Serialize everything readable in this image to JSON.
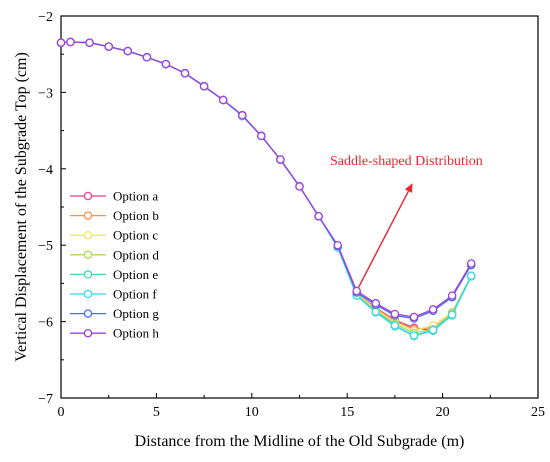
{
  "chart_data": {
    "type": "line",
    "title": "",
    "xlabel": "Distance from the Midline of the Old Subgrade (m)",
    "ylabel": "Vertical Displacement of the Subgrade Top (cm)",
    "xlim": [
      0,
      25
    ],
    "ylim": [
      -7,
      -2
    ],
    "x_ticks": [
      "0",
      "5",
      "10",
      "15",
      "20",
      "25"
    ],
    "y_ticks": [
      "−2",
      "−3",
      "−4",
      "−5",
      "−6",
      "−7"
    ],
    "grid": false,
    "legend_position": "left-middle",
    "annotation": {
      "text": "Saddle-shaped Distribution",
      "color": "#e8262c",
      "arrow_from": [
        15.6,
        -5.55
      ],
      "arrow_to": [
        18.4,
        -4.2
      ]
    },
    "x": [
      0,
      0.5,
      1.5,
      2.5,
      3.5,
      4.5,
      5.5,
      6.5,
      7.5,
      8.5,
      9.5,
      10.5,
      11.5,
      12.5,
      13.5,
      14.5,
      15.5,
      16.5,
      17.5,
      18.5,
      19.5,
      20.5,
      21.5
    ],
    "series": [
      {
        "name": "Option a",
        "color": "#e8408c",
        "values": [
          -2.35,
          -2.34,
          -2.35,
          -2.4,
          -2.46,
          -2.54,
          -2.63,
          -2.75,
          -2.92,
          -3.1,
          -3.3,
          -3.57,
          -3.88,
          -4.23,
          -4.62,
          -5.02,
          -5.63,
          -5.82,
          -5.98,
          -6.08,
          -6.12,
          -5.88,
          -5.4
        ]
      },
      {
        "name": "Option b",
        "color": "#f0914a",
        "values": [
          -2.35,
          -2.34,
          -2.35,
          -2.4,
          -2.46,
          -2.54,
          -2.63,
          -2.75,
          -2.92,
          -3.1,
          -3.3,
          -3.57,
          -3.88,
          -4.23,
          -4.62,
          -5.02,
          -5.63,
          -5.83,
          -5.99,
          -6.1,
          -6.08,
          -5.9,
          -5.4
        ]
      },
      {
        "name": "Option c",
        "color": "#f2e470",
        "values": [
          -2.35,
          -2.34,
          -2.35,
          -2.4,
          -2.46,
          -2.54,
          -2.63,
          -2.75,
          -2.92,
          -3.1,
          -3.3,
          -3.57,
          -3.88,
          -4.23,
          -4.62,
          -5.02,
          -5.63,
          -5.84,
          -6.01,
          -6.12,
          -6.05,
          -5.88,
          -5.4
        ]
      },
      {
        "name": "Option d",
        "color": "#a8d860",
        "values": [
          -2.35,
          -2.34,
          -2.35,
          -2.4,
          -2.46,
          -2.54,
          -2.63,
          -2.75,
          -2.92,
          -3.1,
          -3.3,
          -3.57,
          -3.88,
          -4.23,
          -4.62,
          -5.02,
          -5.64,
          -5.86,
          -6.03,
          -6.15,
          -6.1,
          -5.89,
          -5.4
        ]
      },
      {
        "name": "Option e",
        "color": "#3edcb8",
        "values": [
          -2.35,
          -2.34,
          -2.35,
          -2.4,
          -2.46,
          -2.54,
          -2.63,
          -2.75,
          -2.92,
          -3.1,
          -3.31,
          -3.57,
          -3.88,
          -4.23,
          -4.62,
          -5.03,
          -5.66,
          -5.88,
          -6.06,
          -6.19,
          -6.12,
          -5.92,
          -5.41
        ]
      },
      {
        "name": "Option f",
        "color": "#38d8e8",
        "values": [
          -2.35,
          -2.34,
          -2.35,
          -2.4,
          -2.46,
          -2.54,
          -2.63,
          -2.75,
          -2.92,
          -3.1,
          -3.31,
          -3.57,
          -3.88,
          -4.23,
          -4.62,
          -5.03,
          -5.66,
          -5.87,
          -6.05,
          -6.18,
          -6.11,
          -5.91,
          -5.4
        ]
      },
      {
        "name": "Option g",
        "color": "#4a6fe0",
        "values": [
          -2.35,
          -2.34,
          -2.35,
          -2.4,
          -2.46,
          -2.54,
          -2.63,
          -2.75,
          -2.92,
          -3.1,
          -3.3,
          -3.57,
          -3.88,
          -4.23,
          -4.62,
          -5.01,
          -5.62,
          -5.78,
          -5.92,
          -5.96,
          -5.86,
          -5.68,
          -5.26
        ]
      },
      {
        "name": "Option h",
        "color": "#a040e0",
        "values": [
          -2.35,
          -2.34,
          -2.35,
          -2.4,
          -2.46,
          -2.54,
          -2.63,
          -2.75,
          -2.92,
          -3.1,
          -3.3,
          -3.57,
          -3.88,
          -4.23,
          -4.62,
          -5.0,
          -5.6,
          -5.76,
          -5.9,
          -5.94,
          -5.84,
          -5.66,
          -5.24
        ]
      }
    ]
  }
}
